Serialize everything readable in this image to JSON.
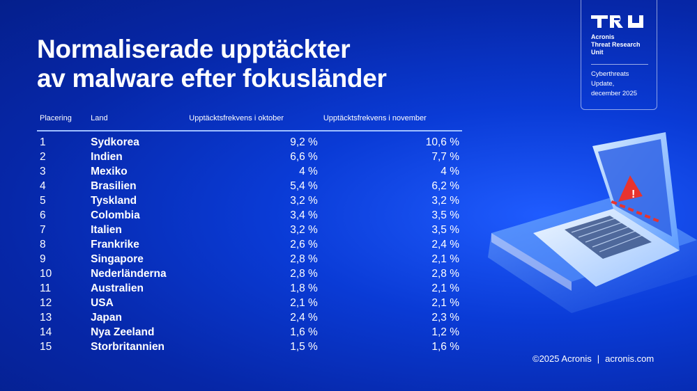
{
  "title": {
    "line1": "Normaliserade upptäckter",
    "line2": "av malware efter fokusländer"
  },
  "table": {
    "headers": {
      "rank": "Placering",
      "country": "Land",
      "october": "Upptäcktsfrekvens i oktober",
      "november": "Upptäcktsfrekvens i november"
    },
    "rows": [
      {
        "rank": "1",
        "country": "Sydkorea",
        "october": "9,2 %",
        "november": "10,6 %"
      },
      {
        "rank": "2",
        "country": "Indien",
        "october": "6,6 %",
        "november": "7,7 %"
      },
      {
        "rank": "3",
        "country": "Mexiko",
        "october": "4 %",
        "november": "4 %"
      },
      {
        "rank": "4",
        "country": "Brasilien",
        "october": "5,4 %",
        "november": "6,2 %"
      },
      {
        "rank": "5",
        "country": "Tyskland",
        "october": "3,2 %",
        "november": "3,2 %"
      },
      {
        "rank": "6",
        "country": "Colombia",
        "october": "3,4 %",
        "november": "3,5 %"
      },
      {
        "rank": "7",
        "country": "Italien",
        "october": "3,2 %",
        "november": "3,5 %"
      },
      {
        "rank": "8",
        "country": "Frankrike",
        "october": "2,6 %",
        "november": "2,4 %"
      },
      {
        "rank": "9",
        "country": "Singapore",
        "october": "2,8 %",
        "november": "2,1 %"
      },
      {
        "rank": "10",
        "country": "Nederländerna",
        "october": "2,8 %",
        "november": "2,8 %"
      },
      {
        "rank": "11",
        "country": "Australien",
        "october": "1,8 %",
        "november": "2,1 %"
      },
      {
        "rank": "12",
        "country": "USA",
        "october": "2,1 %",
        "november": "2,1 %"
      },
      {
        "rank": "13",
        "country": "Japan",
        "october": "2,4 %",
        "november": "2,3 %"
      },
      {
        "rank": "14",
        "country": "Nya Zeeland",
        "october": "1,6 %",
        "november": "1,2 %"
      },
      {
        "rank": "15",
        "country": "Storbritannien",
        "october": "1,5 %",
        "november": "1,6 %"
      }
    ]
  },
  "badge": {
    "logo_icon": "tru-logo-icon",
    "unit_line1": "Acronis",
    "unit_line2": "Threat Research",
    "unit_line3": "Unit",
    "update_line1": "Cyberthreats",
    "update_line2": "Update,",
    "update_line3": "december 2025"
  },
  "footer": {
    "copyright": "©2025 Acronis",
    "separator": "|",
    "website": "acronis.com"
  },
  "illustration": {
    "icon": "laptop-warning-icon",
    "warning_glyph": "!"
  },
  "colors": {
    "background": "#0a3bd6",
    "divider": "#9fc0ff",
    "warning": "#e8332e"
  }
}
